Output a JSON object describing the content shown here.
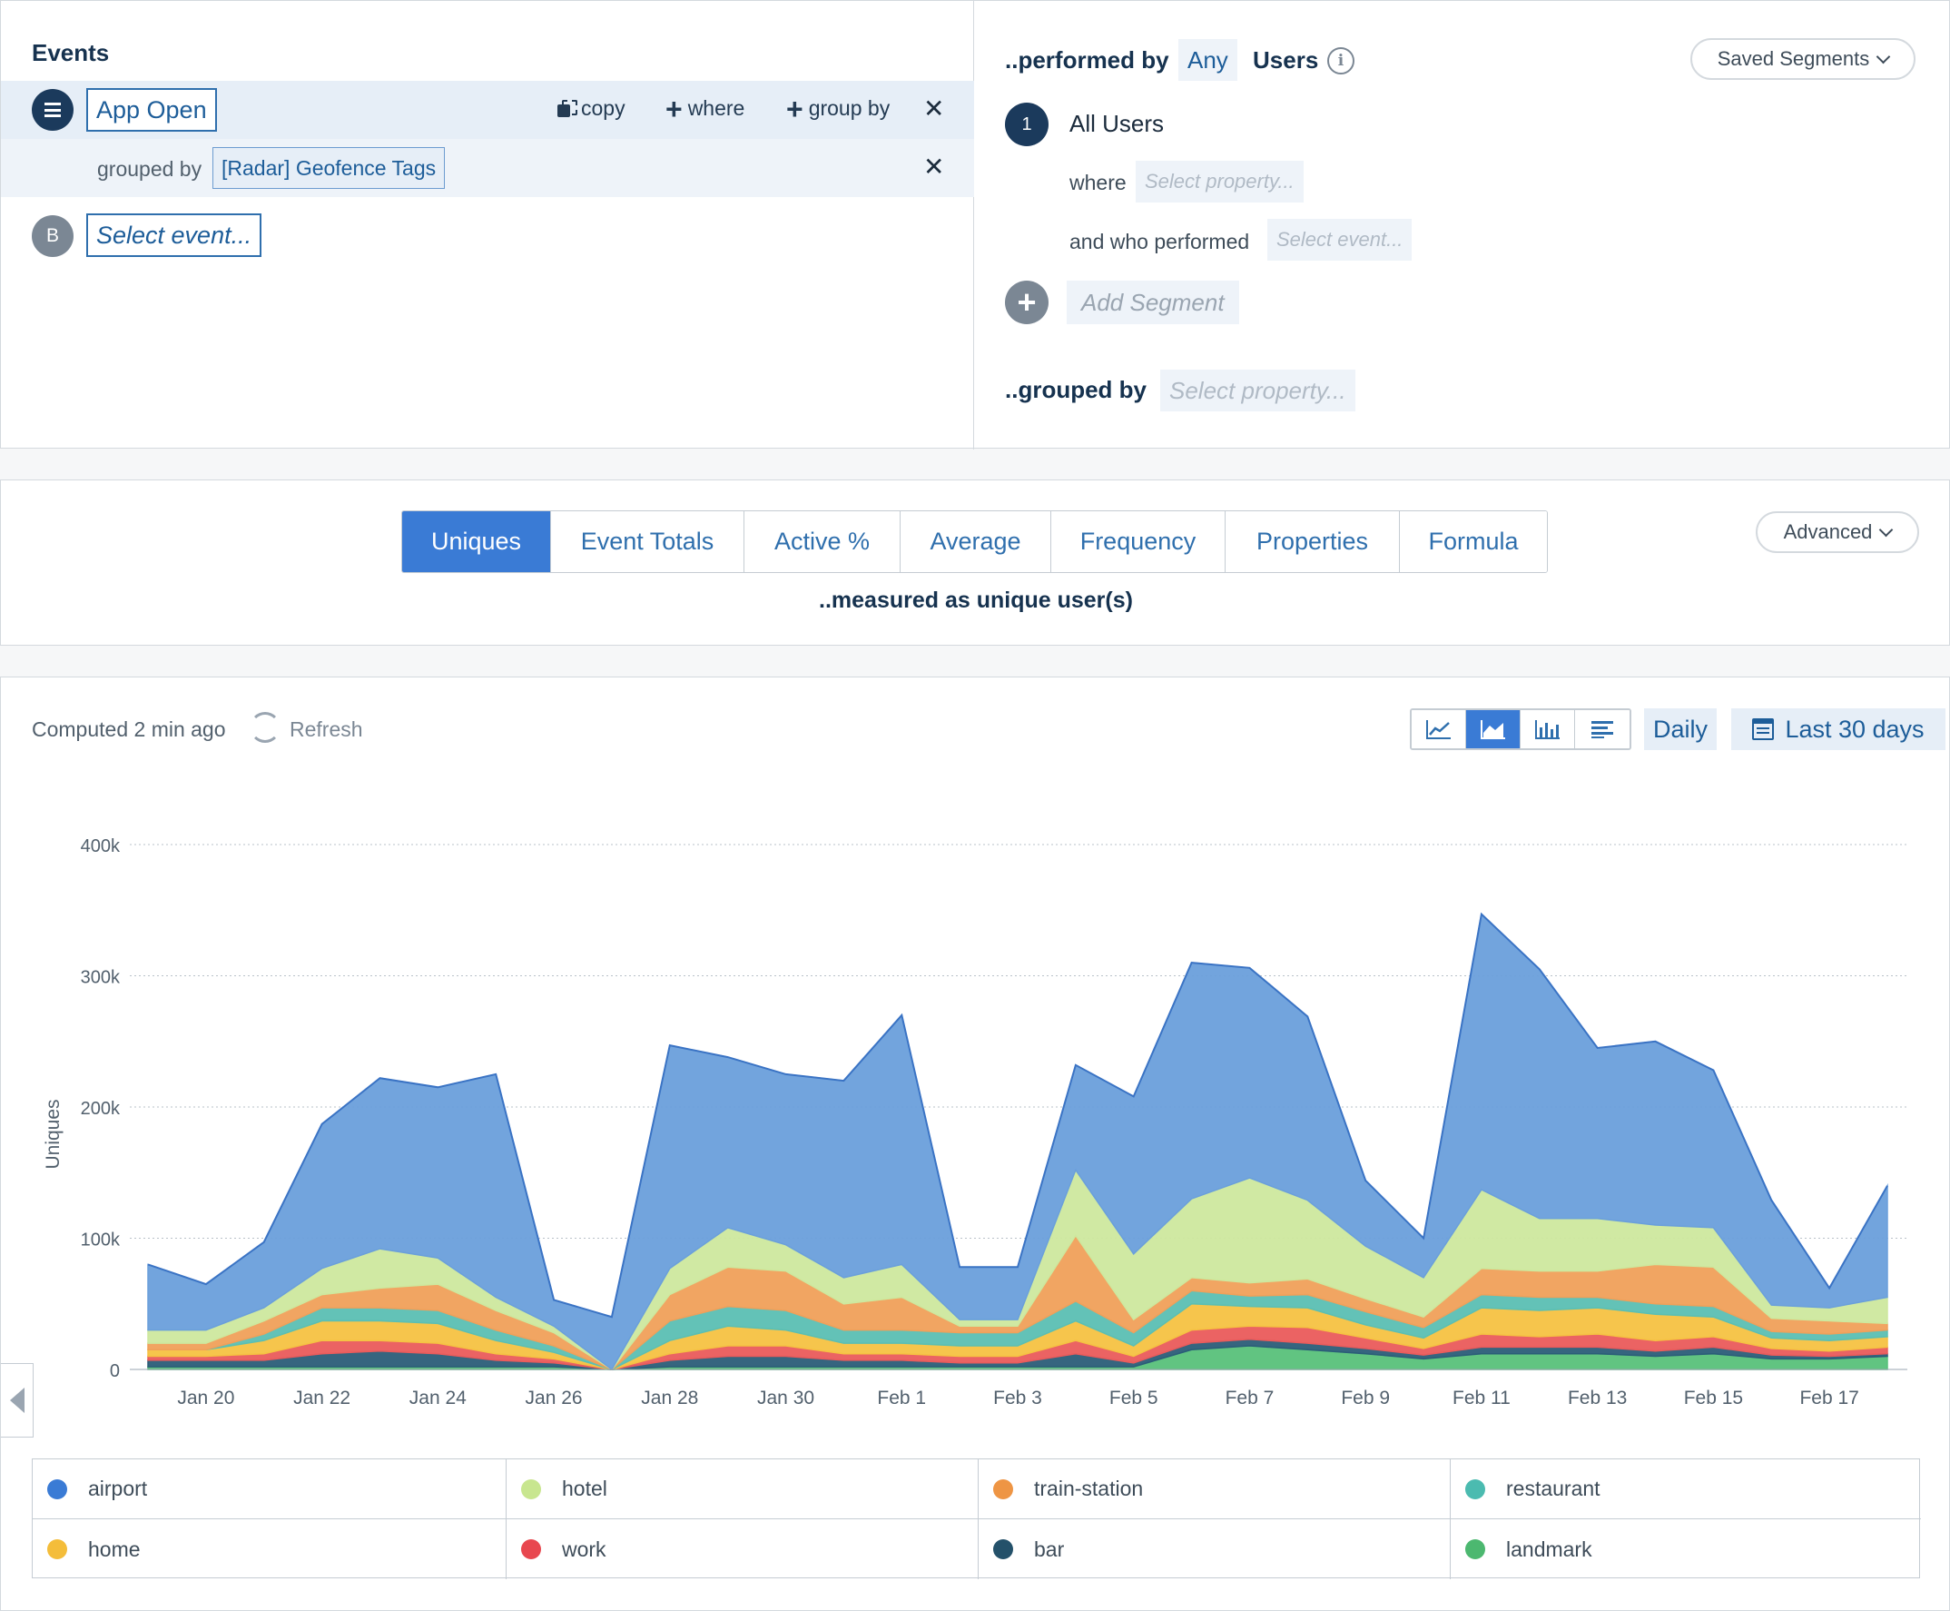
{
  "events": {
    "title": "Events",
    "event_a": {
      "name": "App Open",
      "copy_label": "copy",
      "where_label": "where",
      "group_by_label": "group by"
    },
    "grouped_by_label": "grouped by",
    "group_property": "[Radar] Geofence Tags",
    "event_b": {
      "letter": "B",
      "placeholder": "Select event..."
    }
  },
  "segments": {
    "performed_by_label": "..performed by",
    "any_label": "Any",
    "users_label": "Users",
    "saved_segments_label": "Saved Segments",
    "segment_number": "1",
    "segment_name": "All Users",
    "where_label": "where",
    "where_placeholder": "Select property...",
    "who_performed_label": "and who performed",
    "who_performed_placeholder": "Select event...",
    "add_segment_label": "Add Segment",
    "grouped_by_label": "..grouped by",
    "grouped_by_placeholder": "Select property..."
  },
  "measure": {
    "tabs": [
      "Uniques",
      "Event Totals",
      "Active %",
      "Average",
      "Frequency",
      "Properties",
      "Formula"
    ],
    "active_tab": "Uniques",
    "advanced_label": "Advanced",
    "measured_as": "..measured as unique user(s)"
  },
  "toolbar": {
    "computed_text": "Computed 2 min ago",
    "refresh_label": "Refresh",
    "view_types": [
      "line-chart-icon",
      "area-chart-icon",
      "bar-chart-icon",
      "table-view-icon"
    ],
    "active_view": "area-chart-icon",
    "interval_label": "Daily",
    "range_label": "Last 30 days"
  },
  "chart_data": {
    "type": "area",
    "stacked": true,
    "ylabel": "Uniques",
    "ylim": [
      0,
      400000
    ],
    "y_ticks": [
      "0",
      "100k",
      "200k",
      "300k",
      "400k"
    ],
    "grid": true,
    "legend_position": "bottom",
    "x": [
      "Jan 19",
      "Jan 20",
      "Jan 21",
      "Jan 22",
      "Jan 23",
      "Jan 24",
      "Jan 25",
      "Jan 26",
      "Jan 27",
      "Jan 28",
      "Jan 29",
      "Jan 30",
      "Jan 31",
      "Feb 1",
      "Feb 2",
      "Feb 3",
      "Feb 4",
      "Feb 5",
      "Feb 6",
      "Feb 7",
      "Feb 8",
      "Feb 9",
      "Feb 10",
      "Feb 11",
      "Feb 12",
      "Feb 13",
      "Feb 14",
      "Feb 15",
      "Feb 16",
      "Feb 17",
      "Feb 18"
    ],
    "x_tick_labels": [
      "Jan 20",
      "Jan 22",
      "Jan 24",
      "Jan 26",
      "Jan 28",
      "Jan 30",
      "Feb 1",
      "Feb 3",
      "Feb 5",
      "Feb 7",
      "Feb 9",
      "Feb 11",
      "Feb 13",
      "Feb 15",
      "Feb 17"
    ],
    "series": [
      {
        "name": "landmark",
        "color": "#59c17a",
        "values": [
          2000,
          2000,
          2000,
          2000,
          2000,
          2000,
          2000,
          2000,
          0,
          2000,
          2000,
          2000,
          2000,
          2000,
          2000,
          2000,
          2000,
          2000,
          15000,
          18000,
          15000,
          12000,
          8000,
          12000,
          12000,
          12000,
          10000,
          12000,
          8000,
          8000,
          10000
        ]
      },
      {
        "name": "bar",
        "color": "#2b5d78",
        "values": [
          5000,
          5000,
          5000,
          10000,
          12000,
          10000,
          5000,
          3000,
          0,
          5000,
          8000,
          8000,
          5000,
          5000,
          3000,
          3000,
          10000,
          3000,
          5000,
          5000,
          5000,
          4000,
          3000,
          5000,
          5000,
          5000,
          4000,
          5000,
          3000,
          2000,
          2000
        ]
      },
      {
        "name": "work",
        "color": "#ea5b5b",
        "values": [
          3000,
          3000,
          5000,
          10000,
          8000,
          8000,
          5000,
          3000,
          0,
          5000,
          8000,
          8000,
          5000,
          5000,
          5000,
          5000,
          10000,
          5000,
          10000,
          10000,
          12000,
          8000,
          5000,
          10000,
          8000,
          10000,
          8000,
          8000,
          5000,
          4000,
          5000
        ]
      },
      {
        "name": "home",
        "color": "#f5c242",
        "values": [
          5000,
          5000,
          10000,
          15000,
          15000,
          15000,
          10000,
          5000,
          0,
          10000,
          15000,
          12000,
          8000,
          8000,
          8000,
          8000,
          15000,
          8000,
          20000,
          15000,
          15000,
          10000,
          8000,
          20000,
          20000,
          20000,
          20000,
          15000,
          8000,
          8000,
          8000
        ]
      },
      {
        "name": "restaurant",
        "color": "#5bbfb3",
        "values": [
          0,
          0,
          5000,
          10000,
          10000,
          10000,
          8000,
          5000,
          0,
          15000,
          15000,
          15000,
          10000,
          10000,
          10000,
          10000,
          15000,
          10000,
          10000,
          8000,
          10000,
          10000,
          8000,
          10000,
          10000,
          8000,
          8000,
          8000,
          5000,
          5000,
          5000
        ]
      },
      {
        "name": "train-station",
        "color": "#f0a05a",
        "values": [
          5000,
          5000,
          10000,
          10000,
          15000,
          20000,
          15000,
          10000,
          0,
          20000,
          30000,
          30000,
          20000,
          25000,
          5000,
          5000,
          50000,
          10000,
          10000,
          10000,
          12000,
          10000,
          8000,
          20000,
          20000,
          20000,
          30000,
          30000,
          10000,
          10000,
          5000
        ]
      },
      {
        "name": "hotel",
        "color": "#cde89e",
        "values": [
          10000,
          10000,
          10000,
          20000,
          30000,
          20000,
          10000,
          5000,
          0,
          20000,
          30000,
          20000,
          20000,
          25000,
          5000,
          5000,
          50000,
          50000,
          60000,
          80000,
          60000,
          40000,
          30000,
          60000,
          40000,
          40000,
          30000,
          30000,
          10000,
          10000,
          20000
        ]
      },
      {
        "name": "airport",
        "color": "#6a9fdb",
        "values": [
          50000,
          35000,
          50000,
          110000,
          130000,
          130000,
          170000,
          20000,
          40000,
          170000,
          130000,
          130000,
          150000,
          190000,
          40000,
          40000,
          80000,
          120000,
          180000,
          160000,
          140000,
          50000,
          30000,
          210000,
          190000,
          130000,
          140000,
          120000,
          80000,
          15000,
          85000
        ]
      }
    ],
    "legend_extra": [
      {
        "name": "airport",
        "color": "#3a7bd5"
      },
      {
        "name": "hotel",
        "color": "#c8e68f"
      },
      {
        "name": "train-station",
        "color": "#ee9544"
      },
      {
        "name": "restaurant",
        "color": "#4bbbb0"
      },
      {
        "name": "home",
        "color": "#f4bd3a"
      },
      {
        "name": "work",
        "color": "#e8474f"
      },
      {
        "name": "bar",
        "color": "#24516a"
      },
      {
        "name": "landmark",
        "color": "#4cb870"
      }
    ]
  }
}
